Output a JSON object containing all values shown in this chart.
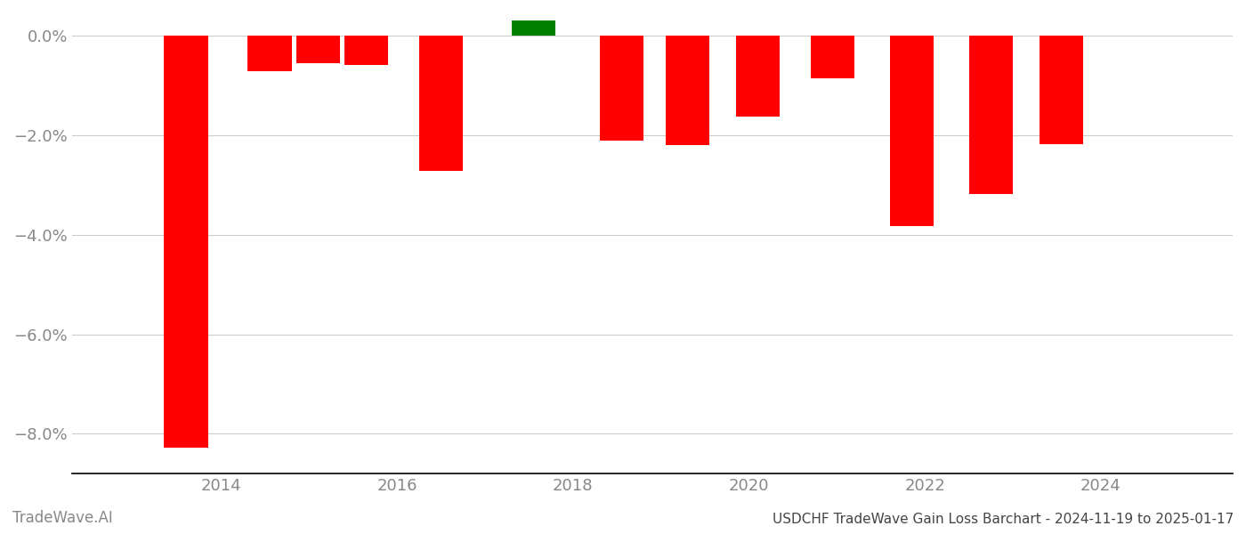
{
  "bar_data": [
    {
      "x": 2013.6,
      "value": -8.28,
      "color": "#ff0000"
    },
    {
      "x": 2014.55,
      "value": -0.72,
      "color": "#ff0000"
    },
    {
      "x": 2015.1,
      "value": -0.55,
      "color": "#ff0000"
    },
    {
      "x": 2015.65,
      "value": -0.58,
      "color": "#ff0000"
    },
    {
      "x": 2016.5,
      "value": -2.72,
      "color": "#ff0000"
    },
    {
      "x": 2017.55,
      "value": 0.3,
      "color": "#008000"
    },
    {
      "x": 2018.55,
      "value": -2.1,
      "color": "#ff0000"
    },
    {
      "x": 2019.3,
      "value": -2.2,
      "color": "#ff0000"
    },
    {
      "x": 2020.1,
      "value": -1.62,
      "color": "#ff0000"
    },
    {
      "x": 2020.95,
      "value": -0.85,
      "color": "#ff0000"
    },
    {
      "x": 2021.85,
      "value": -3.82,
      "color": "#ff0000"
    },
    {
      "x": 2022.75,
      "value": -3.18,
      "color": "#ff0000"
    },
    {
      "x": 2023.55,
      "value": -2.18,
      "color": "#ff0000"
    }
  ],
  "bar_width": 0.5,
  "ylim": [
    -8.8,
    0.45
  ],
  "yticks": [
    0.0,
    -2.0,
    -4.0,
    -6.0,
    -8.0
  ],
  "ytick_labels": [
    "0.0%",
    "−2.0%",
    "−4.0%",
    "−6.0%",
    "−8.0%"
  ],
  "xlim": [
    2012.3,
    2025.5
  ],
  "xticks": [
    2014,
    2016,
    2018,
    2020,
    2022,
    2024
  ],
  "title": "USDCHF TradeWave Gain Loss Barchart - 2024-11-19 to 2025-01-17",
  "watermark": "TradeWave.AI",
  "bg_color": "#ffffff",
  "grid_color": "#cccccc",
  "tick_label_color": "#888888",
  "title_color": "#444444",
  "watermark_color": "#888888"
}
